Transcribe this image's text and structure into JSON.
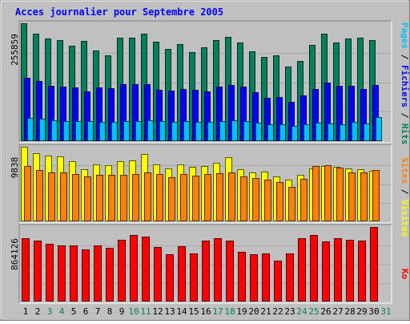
{
  "title": "Acces journalier pour Septembre 2005",
  "colors": {
    "background": "#C0C0C0",
    "title": "#0000FF",
    "hits": "#00805C",
    "files": "#0000FF",
    "pages": "#00C0FF",
    "visits": "#FFFF00",
    "sites": "#FF8000",
    "kbytes": "#FF0000",
    "weekend_label": "#00805C",
    "weekday_label": "#000000"
  },
  "chart_data": [
    {
      "type": "bar",
      "panel": "top",
      "ymax_label": "255859",
      "ylim": [
        0,
        255859
      ],
      "legend": [
        {
          "text": "Pages",
          "color": "#00C0FF"
        },
        {
          "text": "/",
          "color": "#000000"
        },
        {
          "text": "Fichiers",
          "color": "#0000FF"
        },
        {
          "text": "/",
          "color": "#000000"
        },
        {
          "text": "Hits",
          "color": "#00805C"
        }
      ],
      "series": [
        {
          "name": "Hits",
          "values": [
            255859,
            234000,
            223000,
            219000,
            207000,
            218000,
            196000,
            186000,
            224000,
            225000,
            233000,
            215000,
            201000,
            211000,
            193000,
            204000,
            220000,
            227000,
            214000,
            195000,
            182000,
            186000,
            161000,
            174000,
            208000,
            234000,
            214000,
            223000,
            224000,
            219000
          ]
        },
        {
          "name": "Fichiers",
          "values": [
            138000,
            131000,
            120000,
            119000,
            117000,
            108000,
            117000,
            115000,
            123000,
            124000,
            123000,
            112000,
            110000,
            114000,
            111000,
            108000,
            118000,
            121000,
            119000,
            106000,
            94000,
            95000,
            86000,
            99000,
            113000,
            127000,
            120000,
            120000,
            113000,
            121000
          ]
        },
        {
          "name": "Pages",
          "values": [
            51000,
            48000,
            46000,
            44000,
            44000,
            44000,
            42000,
            42000,
            43000,
            44000,
            46000,
            44000,
            42000,
            44000,
            42000,
            42000,
            43000,
            46000,
            44000,
            40000,
            36000,
            36000,
            33000,
            36000,
            40000,
            38000,
            37000,
            42000,
            39000,
            52000
          ]
        }
      ]
    },
    {
      "type": "bar",
      "panel": "middle",
      "ymax_label": "9838",
      "ylim": [
        0,
        9838
      ],
      "legend": [
        {
          "text": "Sites",
          "color": "#FF8000"
        },
        {
          "text": "/",
          "color": "#000000"
        },
        {
          "text": "Visites",
          "color": "#FFFF00"
        }
      ],
      "series": [
        {
          "name": "Visites",
          "values": [
            9838,
            9000,
            8680,
            8600,
            7900,
            6900,
            7500,
            7400,
            7950,
            8000,
            8900,
            7500,
            7000,
            7500,
            7200,
            7300,
            7700,
            8500,
            6900,
            6500,
            6600,
            5900,
            5500,
            6100,
            7000,
            7350,
            7200,
            7000,
            6900,
            6700
          ]
        },
        {
          "name": "Sites",
          "values": [
            7300,
            6800,
            6500,
            6400,
            6200,
            5900,
            6100,
            6100,
            6150,
            6200,
            6500,
            6200,
            5800,
            6200,
            6000,
            6200,
            6300,
            6500,
            5900,
            5700,
            5500,
            5200,
            4600,
            5600,
            7300,
            7400,
            7100,
            6500,
            6400,
            6800
          ]
        }
      ]
    },
    {
      "type": "bar",
      "panel": "bottom",
      "ymax_label": "864126",
      "ylim": [
        0,
        864126
      ],
      "legend": [
        {
          "text": "Ko",
          "color": "#FF0000"
        }
      ],
      "series": [
        {
          "name": "Ko",
          "values": [
            730000,
            710000,
            670000,
            650000,
            650000,
            600000,
            650000,
            620000,
            720000,
            770000,
            750000,
            630000,
            550000,
            640000,
            560000,
            710000,
            730000,
            710000,
            580000,
            550000,
            560000,
            470000,
            560000,
            730000,
            770000,
            700000,
            730000,
            720000,
            710000,
            864126
          ]
        }
      ]
    }
  ],
  "days": [
    "1",
    "2",
    "3",
    "4",
    "5",
    "6",
    "7",
    "8",
    "9",
    "10",
    "11",
    "12",
    "13",
    "14",
    "15",
    "16",
    "17",
    "18",
    "19",
    "20",
    "21",
    "22",
    "23",
    "24",
    "25",
    "26",
    "27",
    "28",
    "29",
    "30",
    "31"
  ],
  "weekend_days": [
    3,
    4,
    10,
    11,
    17,
    18,
    24,
    25,
    31
  ]
}
